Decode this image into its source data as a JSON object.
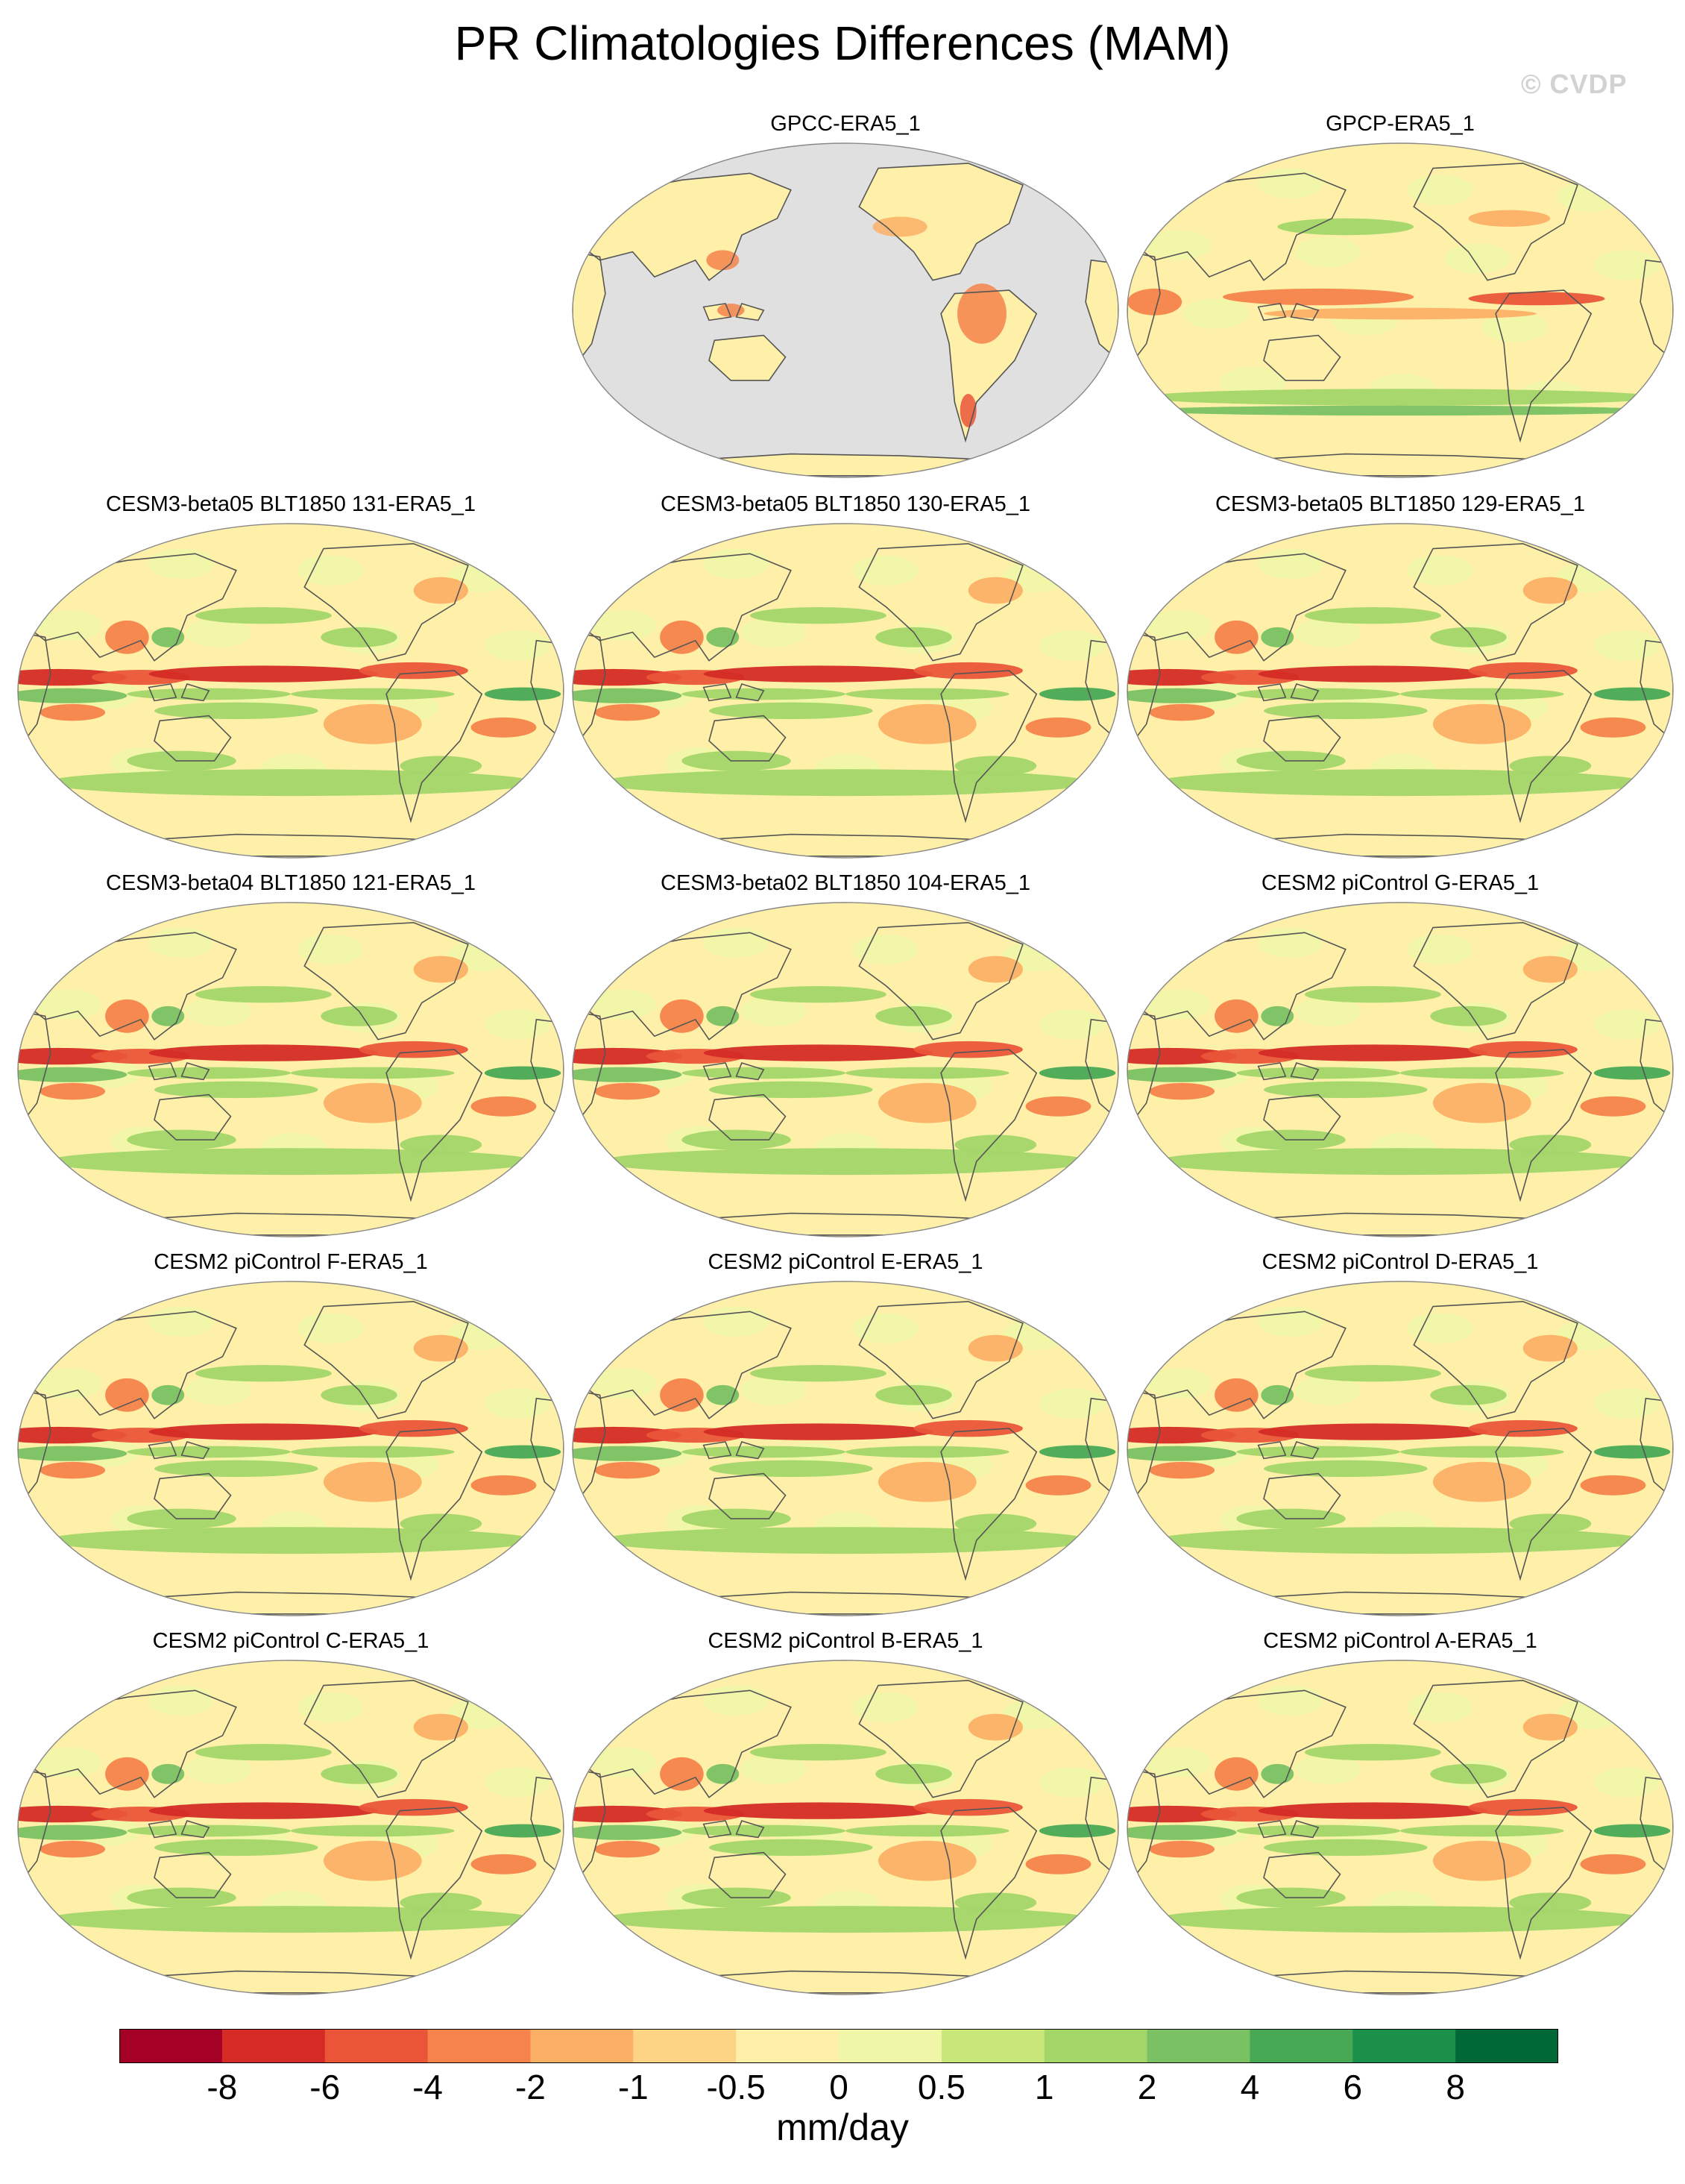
{
  "title": "PR Climatologies Differences (MAM)",
  "watermark": "© CVDP",
  "panels": [
    {
      "label": "GPCC-ERA5_1",
      "masked_ocean": true
    },
    {
      "label": "GPCP-ERA5_1",
      "masked_ocean": false
    },
    {
      "label": "CESM3-beta05 BLT1850 131-ERA5_1",
      "masked_ocean": false
    },
    {
      "label": "CESM3-beta05 BLT1850 130-ERA5_1",
      "masked_ocean": false
    },
    {
      "label": "CESM3-beta05 BLT1850 129-ERA5_1",
      "masked_ocean": false
    },
    {
      "label": "CESM3-beta04 BLT1850 121-ERA5_1",
      "masked_ocean": false
    },
    {
      "label": "CESM3-beta02 BLT1850 104-ERA5_1",
      "masked_ocean": false
    },
    {
      "label": "CESM2 piControl G-ERA5_1",
      "masked_ocean": false
    },
    {
      "label": "CESM2 piControl F-ERA5_1",
      "masked_ocean": false
    },
    {
      "label": "CESM2 piControl E-ERA5_1",
      "masked_ocean": false
    },
    {
      "label": "CESM2 piControl D-ERA5_1",
      "masked_ocean": false
    },
    {
      "label": "CESM2 piControl C-ERA5_1",
      "masked_ocean": false
    },
    {
      "label": "CESM2 piControl B-ERA5_1",
      "masked_ocean": false
    },
    {
      "label": "CESM2 piControl A-ERA5_1",
      "masked_ocean": false
    }
  ],
  "colorbar": {
    "colors": [
      "#a50026",
      "#d42b25",
      "#ea5538",
      "#f5834b",
      "#fbb066",
      "#fdd486",
      "#fef0a8",
      "#f0f6a8",
      "#c8e67a",
      "#a3d669",
      "#7ac163",
      "#48a955",
      "#1a904a",
      "#006837"
    ],
    "tick_labels": [
      "-8",
      "-6",
      "-4",
      "-2",
      "-1",
      "-0.5",
      "0",
      "0.5",
      "1",
      "2",
      "4",
      "6",
      "8"
    ],
    "units": "mm/day"
  },
  "map_colors": {
    "ocean_mask": "#e0e0e0",
    "coast": "#555555",
    "base": "#fef0a8"
  }
}
